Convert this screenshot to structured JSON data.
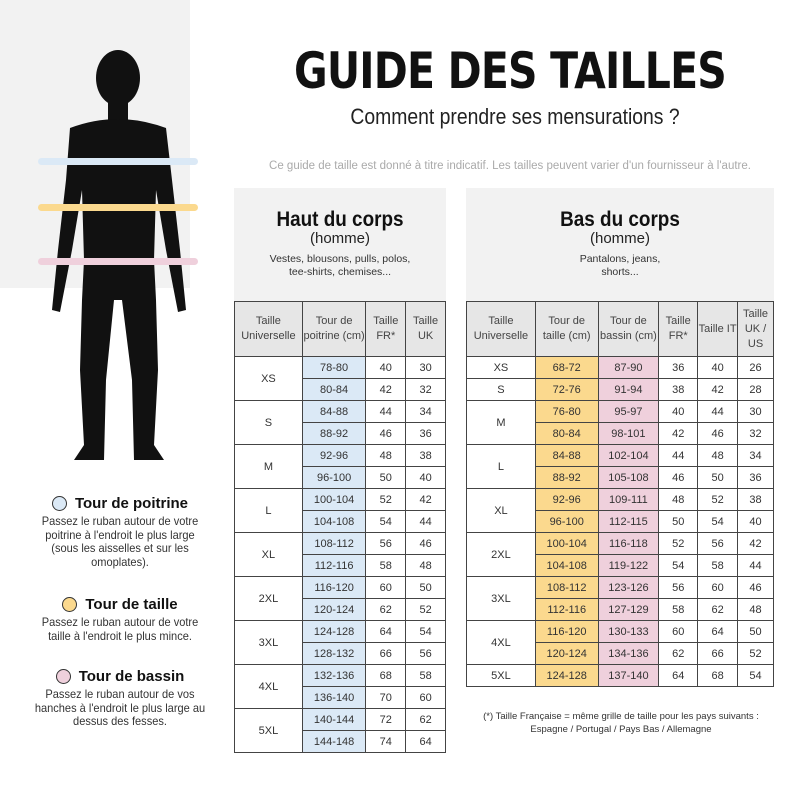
{
  "header": {
    "title": "GUIDE DES TAILLES",
    "subtitle": "Comment prendre ses mensurations ?",
    "disclaimer": "Ce guide de taille est donné à titre indicatif. Les tailles peuvent varier d'un fournisseur à l'autre."
  },
  "colors": {
    "poitrine": "#dbe9f6",
    "taille": "#fbd98e",
    "bassin": "#efd0dc"
  },
  "legend": [
    {
      "icon": "blue-circle-icon",
      "title": "Tour de poitrine",
      "text": "Passez le ruban autour de votre poitrine à l'endroit le plus large (sous les aisselles et sur les omoplates).",
      "color": "#dbe9f6"
    },
    {
      "icon": "yellow-circle-icon",
      "title": "Tour de taille",
      "text": "Passez le ruban autour de votre taille à l'endroit le plus mince.",
      "color": "#fbd98e"
    },
    {
      "icon": "pink-circle-icon",
      "title": "Tour de bassin",
      "text": "Passez le ruban autour de vos hanches à l'endroit le plus large au dessus des fesses.",
      "color": "#efd0dc"
    }
  ],
  "haut": {
    "title": "Haut du corps",
    "gender": "(homme)",
    "desc": "Vestes, blousons, pulls, polos, tee-shirts, chemises...",
    "headers": [
      "Taille Universelle",
      "Tour de poitrine (cm)",
      "Taille FR*",
      "Taille UK"
    ],
    "groups": [
      {
        "size": "XS",
        "rows": [
          [
            "78-80",
            "40",
            "30"
          ],
          [
            "80-84",
            "42",
            "32"
          ]
        ]
      },
      {
        "size": "S",
        "rows": [
          [
            "84-88",
            "44",
            "34"
          ],
          [
            "88-92",
            "46",
            "36"
          ]
        ]
      },
      {
        "size": "M",
        "rows": [
          [
            "92-96",
            "48",
            "38"
          ],
          [
            "96-100",
            "50",
            "40"
          ]
        ]
      },
      {
        "size": "L",
        "rows": [
          [
            "100-104",
            "52",
            "42"
          ],
          [
            "104-108",
            "54",
            "44"
          ]
        ]
      },
      {
        "size": "XL",
        "rows": [
          [
            "108-112",
            "56",
            "46"
          ],
          [
            "112-116",
            "58",
            "48"
          ]
        ]
      },
      {
        "size": "2XL",
        "rows": [
          [
            "116-120",
            "60",
            "50"
          ],
          [
            "120-124",
            "62",
            "52"
          ]
        ]
      },
      {
        "size": "3XL",
        "rows": [
          [
            "124-128",
            "64",
            "54"
          ],
          [
            "128-132",
            "66",
            "56"
          ]
        ]
      },
      {
        "size": "4XL",
        "rows": [
          [
            "132-136",
            "68",
            "58"
          ],
          [
            "136-140",
            "70",
            "60"
          ]
        ]
      },
      {
        "size": "5XL",
        "rows": [
          [
            "140-144",
            "72",
            "62"
          ],
          [
            "144-148",
            "74",
            "64"
          ]
        ]
      }
    ]
  },
  "bas": {
    "title": "Bas du corps",
    "gender": "(homme)",
    "desc": "Pantalons, jeans, shorts...",
    "headers": [
      "Taille Universelle",
      "Tour de taille (cm)",
      "Tour de bassin (cm)",
      "Taille FR*",
      "Taille IT",
      "Taille UK / US"
    ],
    "groups": [
      {
        "size": "XS",
        "rows": [
          [
            "68-72",
            "87-90",
            "36",
            "40",
            "26"
          ]
        ]
      },
      {
        "size": "S",
        "rows": [
          [
            "72-76",
            "91-94",
            "38",
            "42",
            "28"
          ]
        ]
      },
      {
        "size": "M",
        "rows": [
          [
            "76-80",
            "95-97",
            "40",
            "44",
            "30"
          ],
          [
            "80-84",
            "98-101",
            "42",
            "46",
            "32"
          ]
        ]
      },
      {
        "size": "L",
        "rows": [
          [
            "84-88",
            "102-104",
            "44",
            "48",
            "34"
          ],
          [
            "88-92",
            "105-108",
            "46",
            "50",
            "36"
          ]
        ]
      },
      {
        "size": "XL",
        "rows": [
          [
            "92-96",
            "109-111",
            "48",
            "52",
            "38"
          ],
          [
            "96-100",
            "112-115",
            "50",
            "54",
            "40"
          ]
        ]
      },
      {
        "size": "2XL",
        "rows": [
          [
            "100-104",
            "116-118",
            "52",
            "56",
            "42"
          ],
          [
            "104-108",
            "119-122",
            "54",
            "58",
            "44"
          ]
        ]
      },
      {
        "size": "3XL",
        "rows": [
          [
            "108-112",
            "123-126",
            "56",
            "60",
            "46"
          ],
          [
            "112-116",
            "127-129",
            "58",
            "62",
            "48"
          ]
        ]
      },
      {
        "size": "4XL",
        "rows": [
          [
            "116-120",
            "130-133",
            "60",
            "64",
            "50"
          ],
          [
            "120-124",
            "134-136",
            "62",
            "66",
            "52"
          ]
        ]
      },
      {
        "size": "5XL",
        "rows": [
          [
            "124-128",
            "137-140",
            "64",
            "68",
            "54"
          ]
        ]
      }
    ]
  },
  "footnote": {
    "line1": "(*) Taille Française = même grille de taille pour les pays suivants :",
    "line2": "Espagne / Portugal / Pays Bas / Allemagne"
  }
}
